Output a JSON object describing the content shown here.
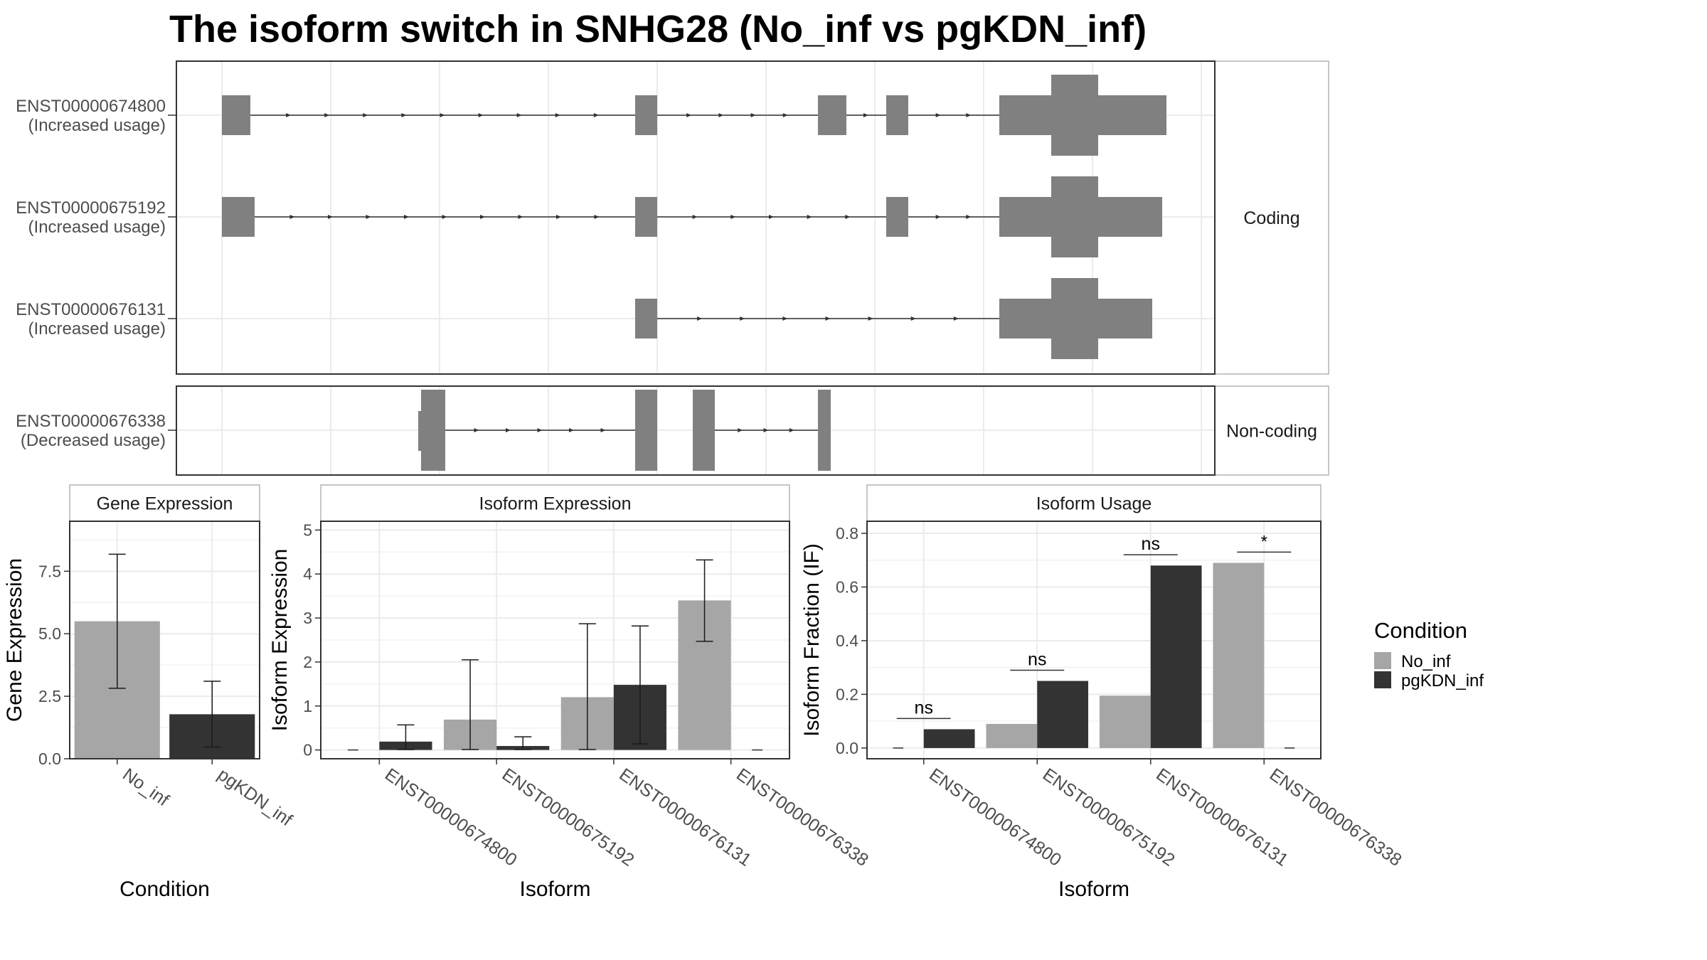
{
  "title": "The isoform switch in SNHG28 (No_inf vs pgKDN_inf)",
  "colors": {
    "exon": "#808080",
    "no_inf": "#a6a6a6",
    "pgkdn_inf": "#333333",
    "grid": "#ebebeb",
    "strip_bg": "#ffffff",
    "axis_text": "#4d4d4d"
  },
  "legend": {
    "title": "Condition",
    "items": [
      {
        "label": "No_inf",
        "color": "#a6a6a6"
      },
      {
        "label": "pgKDN_inf",
        "color": "#333333"
      }
    ]
  },
  "chart_data": [
    {
      "type": "gene_structure",
      "facets": [
        "Coding",
        "Non-coding"
      ],
      "transcripts": [
        {
          "id": "ENST00000674800",
          "usage": "(Increased usage)",
          "facet": "Coding"
        },
        {
          "id": "ENST00000675192",
          "usage": "(Increased usage)",
          "facet": "Coding"
        },
        {
          "id": "ENST00000676131",
          "usage": "(Increased usage)",
          "facet": "Coding"
        },
        {
          "id": "ENST00000676338",
          "usage": "(Decreased usage)",
          "facet": "Non-coding"
        }
      ]
    },
    {
      "type": "bar",
      "title": "Gene Expression",
      "xlabel": "Condition",
      "ylabel": "Gene Expression",
      "categories": [
        "No_inf",
        "pgKDN_inf"
      ],
      "values": [
        5.5,
        1.78
      ],
      "error_low": [
        2.82,
        0.47
      ],
      "error_high": [
        8.18,
        3.1
      ],
      "ylim": [
        0,
        9.5
      ],
      "yticks": [
        "0.0",
        "2.5",
        "5.0",
        "7.5"
      ]
    },
    {
      "type": "bar",
      "title": "Isoform Expression",
      "xlabel": "Isoform",
      "ylabel": "Isoform Expression",
      "categories": [
        "ENST00000674800",
        "ENST00000675192",
        "ENST00000676131",
        "ENST00000676338"
      ],
      "series": [
        {
          "name": "No_inf",
          "values": [
            0.0,
            0.69,
            1.2,
            3.4
          ],
          "error_low": [
            0.0,
            0.01,
            0.01,
            2.47
          ],
          "error_high": [
            0.0,
            2.05,
            2.87,
            4.32
          ]
        },
        {
          "name": "pgKDN_inf",
          "values": [
            0.19,
            0.09,
            1.48,
            0.0
          ],
          "error_low": [
            0.01,
            0.01,
            0.14,
            0.0
          ],
          "error_high": [
            0.57,
            0.3,
            2.82,
            0.0
          ]
        }
      ],
      "ylim": [
        -0.2,
        5.2
      ],
      "yticks": [
        "0",
        "1",
        "2",
        "3",
        "4",
        "5"
      ]
    },
    {
      "type": "bar",
      "title": "Isoform Usage",
      "xlabel": "Isoform",
      "ylabel": "Isoform Fraction (IF)",
      "categories": [
        "ENST00000674800",
        "ENST00000675192",
        "ENST00000676131",
        "ENST00000676338"
      ],
      "series": [
        {
          "name": "No_inf",
          "values": [
            0.0,
            0.09,
            0.195,
            0.69
          ]
        },
        {
          "name": "pgKDN_inf",
          "values": [
            0.07,
            0.25,
            0.68,
            0.0
          ]
        }
      ],
      "significance": [
        "ns",
        "ns",
        "ns",
        "*"
      ],
      "sig_y": [
        0.11,
        0.29,
        0.72,
        0.73
      ],
      "ylim": [
        -0.04,
        0.845
      ],
      "yticks": [
        "0.0",
        "0.2",
        "0.4",
        "0.6",
        "0.8"
      ]
    }
  ]
}
